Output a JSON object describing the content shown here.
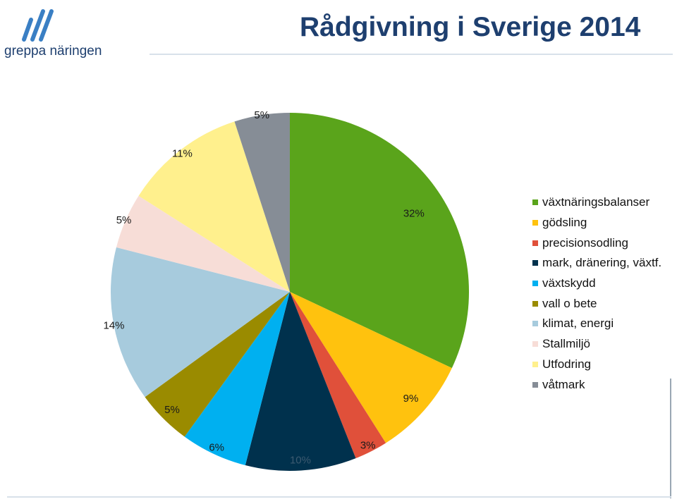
{
  "logo": {
    "text": "greppa näringen",
    "color": "#1e3f6f",
    "accent": "#3a7fc4"
  },
  "title": "Rådgivning i Sverige 2014",
  "chart_data": {
    "type": "pie",
    "title": "Rådgivning i Sverige 2014",
    "start_angle_deg": 0,
    "direction": "clockwise",
    "legend_position": "right",
    "slices": [
      {
        "name": "växtnäringsbalanser",
        "value": 32,
        "label": "32%",
        "color": "#5aa41b"
      },
      {
        "name": "gödsling",
        "value": 9,
        "label": "9%",
        "color": "#ffc20e"
      },
      {
        "name": "precisionsodling",
        "value": 3,
        "label": "3%",
        "color": "#e0503a"
      },
      {
        "name": "mark, dränering, växtf.",
        "value": 10,
        "label": "10%",
        "color": "#00314d"
      },
      {
        "name": "växtskydd",
        "value": 6,
        "label": "6%",
        "color": "#00b0f0"
      },
      {
        "name": "vall o bete",
        "value": 5,
        "label": "5%",
        "color": "#9a8b00"
      },
      {
        "name": "klimat, energi",
        "value": 14,
        "label": "14%",
        "color": "#a7cbdd"
      },
      {
        "name": "Stallmiljö",
        "value": 5,
        "label": "5%",
        "color": "#f7ddd7"
      },
      {
        "name": "Utfodring",
        "value": 11,
        "label": "11%",
        "color": "#fff08d"
      },
      {
        "name": "våtmark",
        "value": 5,
        "label": "5%",
        "color": "#868d96"
      }
    ]
  }
}
